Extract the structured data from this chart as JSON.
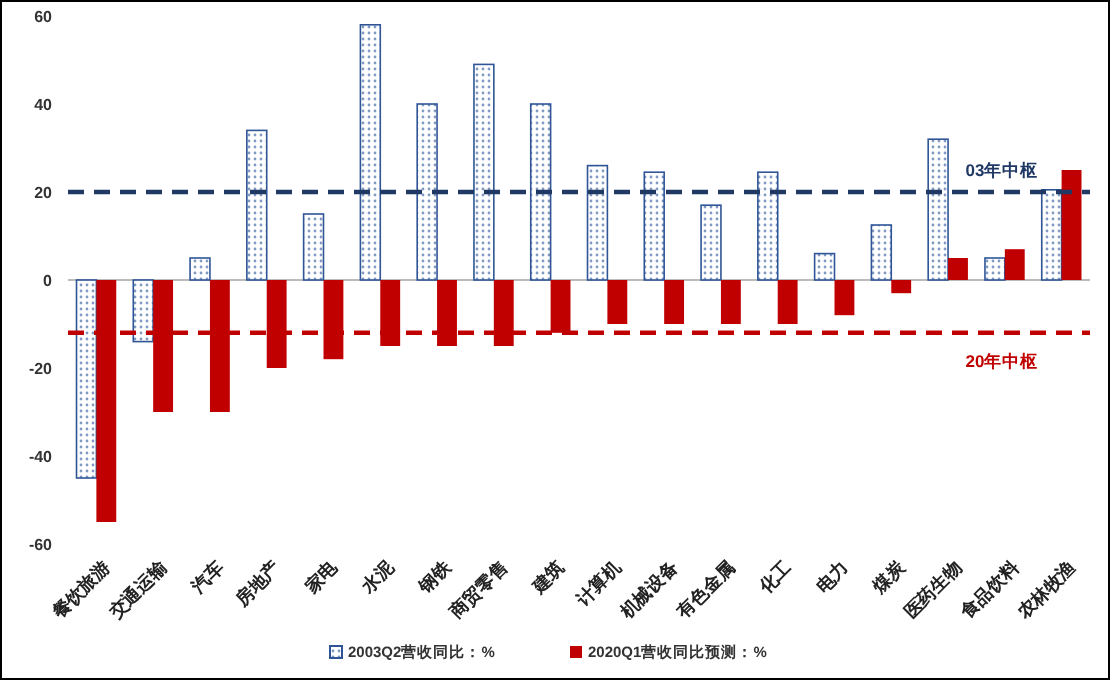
{
  "chart_data": {
    "type": "bar",
    "categories": [
      "餐饮旅游",
      "交通运输",
      "汽车",
      "房地产",
      "家电",
      "水泥",
      "钢铁",
      "商贸零售",
      "建筑",
      "计算机",
      "机械设备",
      "有色金属",
      "化工",
      "电力",
      "煤炭",
      "医药生物",
      "食品饮料",
      "农林牧渔"
    ],
    "series": [
      {
        "name": "2003Q2营收同比：%",
        "color": "#2f5597",
        "values": [
          -45,
          -14,
          5,
          34,
          15,
          58,
          40,
          49,
          40,
          26,
          24.5,
          17,
          24.5,
          6,
          12.5,
          32,
          5,
          20.5
        ]
      },
      {
        "name": "2020Q1营收同比预测：%",
        "color": "#c00000",
        "values": [
          -55,
          -30,
          -30,
          -20,
          -18,
          -15,
          -15,
          -15,
          -12,
          -10,
          -10,
          -10,
          -10,
          -8,
          -3,
          5,
          7,
          25
        ]
      }
    ],
    "ylim": [
      -60,
      60
    ],
    "yticks": [
      -60,
      -40,
      -20,
      0,
      20,
      40,
      60
    ],
    "grid": false,
    "legend": "bottom",
    "ref_lines": [
      {
        "axis": "y",
        "value": 20,
        "label": "03年中枢",
        "color": "#1f3864",
        "line_style": "dashed"
      },
      {
        "axis": "y",
        "value": -12,
        "label": "20年中枢",
        "color": "#c00000",
        "line_style": "dashed"
      }
    ]
  }
}
